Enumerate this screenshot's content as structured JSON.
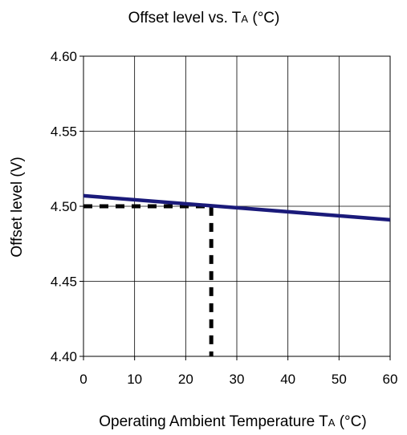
{
  "chart_data": {
    "type": "line",
    "title": {
      "main": "Offset level vs. T",
      "subscript": "A",
      "suffix": " (°C)"
    },
    "xlabel": {
      "main": "Operating Ambient Temperature T",
      "subscript": "A",
      "suffix": " (°C)"
    },
    "ylabel": "Offset level (V)",
    "xlim": [
      0,
      60
    ],
    "ylim": [
      4.4,
      4.6
    ],
    "x_ticks": [
      0,
      10,
      20,
      30,
      40,
      50,
      60
    ],
    "y_ticks": [
      4.4,
      4.45,
      4.5,
      4.55,
      4.6
    ],
    "x_tick_labels": [
      "0",
      "10",
      "20",
      "30",
      "40",
      "50",
      "60"
    ],
    "y_tick_labels": [
      "4.40",
      "4.45",
      "4.50",
      "4.55",
      "4.60"
    ],
    "grid": true,
    "series": [
      {
        "style": "solid",
        "color": "#1a1a7a",
        "points": [
          {
            "x": 0,
            "y": 4.507
          },
          {
            "x": 60,
            "y": 4.491
          }
        ]
      }
    ],
    "reference_lines": [
      {
        "style": "dashed",
        "color": "#000000",
        "points": [
          {
            "x": 0,
            "y": 4.5
          },
          {
            "x": 25,
            "y": 4.5
          },
          {
            "x": 25,
            "y": 4.4
          }
        ]
      }
    ]
  }
}
